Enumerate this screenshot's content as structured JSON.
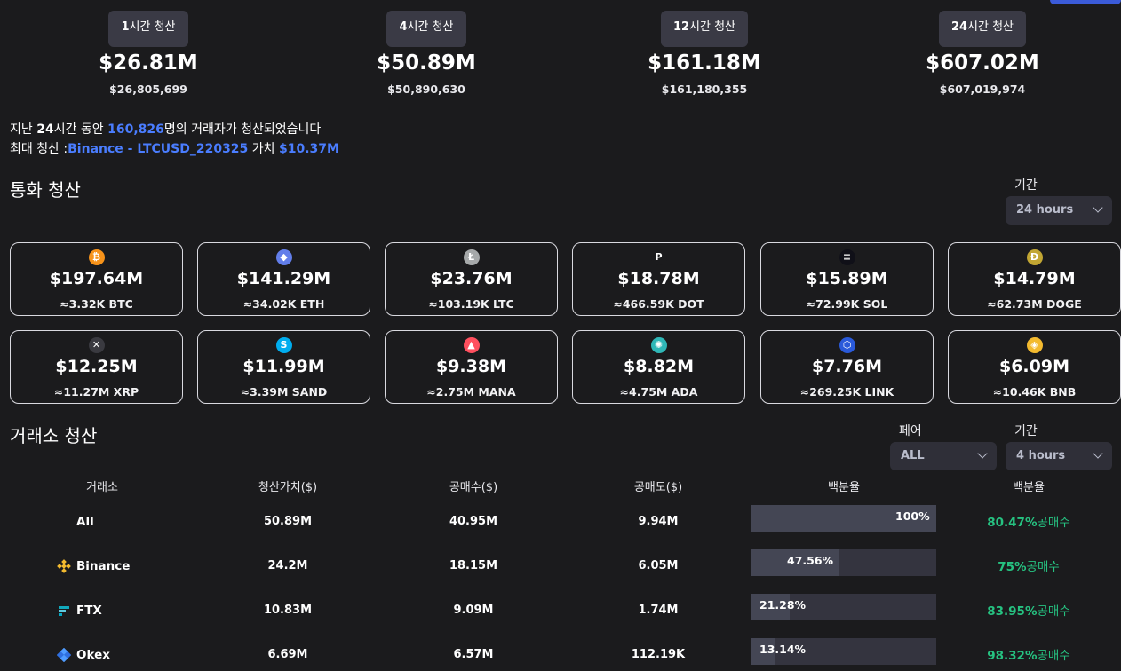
{
  "summary": [
    {
      "label": "1시간 청산",
      "bold": "1",
      "rest": "시간 청산",
      "value": "$26.81M",
      "exact": "$26,805,699"
    },
    {
      "label": "4시간 청산",
      "bold": "4",
      "rest": "시간 청산",
      "value": "$50.89M",
      "exact": "$50,890,630"
    },
    {
      "label": "12시간 청산",
      "bold": "12",
      "rest": "시간 청산",
      "value": "$161.18M",
      "exact": "$161,180,355"
    },
    {
      "label": "24시간 청산",
      "bold": "24",
      "rest": "시간 청산",
      "value": "$607.02M",
      "exact": "$607,019,974"
    }
  ],
  "info": {
    "line1_a": "지난 ",
    "line1_b": "24",
    "line1_c": "시간 동안 ",
    "line1_count": "160,826",
    "line1_d": "명의 거래자가 청산되었습니다",
    "line2_a": "최대 청산 :",
    "line2_ex": "Binance - LTCUSD_220325",
    "line2_b": " 가치 ",
    "line2_val": "$10.37M"
  },
  "coin_section": {
    "title": "통화 청산",
    "period_label": "기간",
    "period_value": "24 hours"
  },
  "coins": [
    {
      "value": "$197.64M",
      "sub": "≈3.32K BTC",
      "icon": "bitcoin-icon",
      "color": "#f7931a",
      "glyph": "₿"
    },
    {
      "value": "$141.29M",
      "sub": "≈34.02K ETH",
      "icon": "ethereum-icon",
      "color": "#627eea",
      "glyph": "◆"
    },
    {
      "value": "$23.76M",
      "sub": "≈103.19K LTC",
      "icon": "litecoin-icon",
      "color": "#a6a9aa",
      "glyph": "Ł"
    },
    {
      "value": "$18.78M",
      "sub": "≈466.59K DOT",
      "icon": "polkadot-icon",
      "color": "#1b1b1d",
      "glyph": "P"
    },
    {
      "value": "$15.89M",
      "sub": "≈72.99K SOL",
      "icon": "solana-icon",
      "color": "#101018",
      "glyph": "≡"
    },
    {
      "value": "$14.79M",
      "sub": "≈62.73M DOGE",
      "icon": "dogecoin-icon",
      "color": "#c2a633",
      "glyph": "Ð"
    },
    {
      "value": "$12.25M",
      "sub": "≈11.27M XRP",
      "icon": "xrp-icon",
      "color": "#3a3a40",
      "glyph": "✕"
    },
    {
      "value": "$11.99M",
      "sub": "≈3.39M SAND",
      "icon": "sandbox-icon",
      "color": "#00adef",
      "glyph": "S"
    },
    {
      "value": "$9.38M",
      "sub": "≈2.75M MANA",
      "icon": "decentraland-icon",
      "color": "#ff4f5e",
      "glyph": "▲"
    },
    {
      "value": "$8.82M",
      "sub": "≈4.75M ADA",
      "icon": "cardano-icon",
      "color": "#2fb7b7",
      "glyph": "✺"
    },
    {
      "value": "$7.76M",
      "sub": "≈269.25K LINK",
      "icon": "chainlink-icon",
      "color": "#2a5ada",
      "glyph": "⬡"
    },
    {
      "value": "$6.09M",
      "sub": "≈10.46K BNB",
      "icon": "bnb-icon",
      "color": "#f3ba2f",
      "glyph": "◈"
    }
  ],
  "exchange_section": {
    "title": "거래소 청산",
    "pair_label": "페어",
    "pair_value": "ALL",
    "period_label": "기간",
    "period_value": "4 hours"
  },
  "table": {
    "headers": [
      "거래소",
      "청산가치($)",
      "공매수($)",
      "공매도($)",
      "백분율",
      "백분율"
    ],
    "rows": [
      {
        "name": "All",
        "icon": "",
        "value": "50.89M",
        "long": "40.95M",
        "short": "9.94M",
        "pct": "100%",
        "pct_fraction": 1.0,
        "long_pct": "80.47%",
        "long_label": "공매수"
      },
      {
        "name": "Binance",
        "icon": "binance-icon",
        "value": "24.2M",
        "long": "18.15M",
        "short": "6.05M",
        "pct": "47.56%",
        "pct_fraction": 0.4756,
        "long_pct": "75%",
        "long_label": "공매수"
      },
      {
        "name": "FTX",
        "icon": "ftx-icon",
        "value": "10.83M",
        "long": "9.09M",
        "short": "1.74M",
        "pct": "21.28%",
        "pct_fraction": 0.2128,
        "long_pct": "83.95%",
        "long_label": "공매수"
      },
      {
        "name": "Okex",
        "icon": "okex-icon",
        "value": "6.69M",
        "long": "6.57M",
        "short": "112.19K",
        "pct": "13.14%",
        "pct_fraction": 0.1314,
        "long_pct": "98.32%",
        "long_label": "공매수"
      }
    ]
  }
}
